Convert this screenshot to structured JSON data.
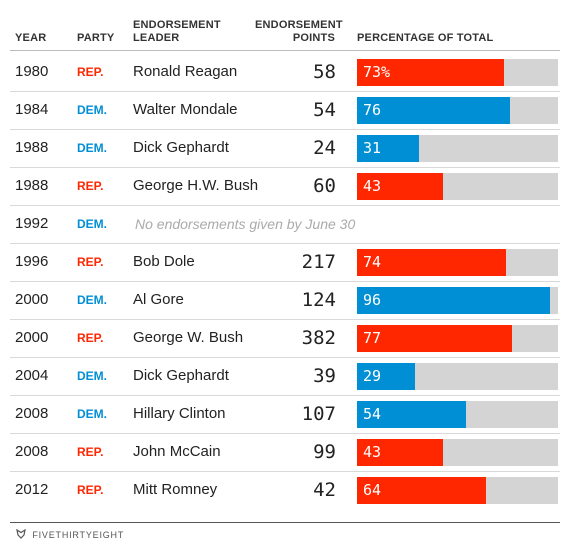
{
  "colors": {
    "rep": "#ff2700",
    "dem": "#008fd5",
    "track": "#d4d4d4",
    "rep_text": "#ff2700",
    "dem_text": "#008fd5"
  },
  "headers": {
    "year": "YEAR",
    "party": "PARTY",
    "leader": [
      "ENDORSEMENT",
      "LEADER"
    ],
    "points": [
      "ENDORSEMENT",
      "POINTS"
    ],
    "percentage": "PERCENTAGE OF TOTAL"
  },
  "chart_data": {
    "type": "table",
    "columns": [
      "YEAR",
      "PARTY",
      "ENDORSEMENT LEADER",
      "ENDORSEMENT POINTS",
      "PERCENTAGE OF TOTAL"
    ],
    "xlim": [
      0,
      100
    ],
    "rows": [
      {
        "year": "1980",
        "party": "REP.",
        "leader": "Ronald Reagan",
        "points": "58",
        "percent": 73,
        "percent_label": "73%"
      },
      {
        "year": "1984",
        "party": "DEM.",
        "leader": "Walter Mondale",
        "points": "54",
        "percent": 76,
        "percent_label": "76"
      },
      {
        "year": "1988",
        "party": "DEM.",
        "leader": "Dick Gephardt",
        "points": "24",
        "percent": 31,
        "percent_label": "31"
      },
      {
        "year": "1988",
        "party": "REP.",
        "leader": "George H.W. Bush",
        "points": "60",
        "percent": 43,
        "percent_label": "43"
      },
      {
        "year": "1992",
        "party": "DEM.",
        "note": "No endorsements given by June 30"
      },
      {
        "year": "1996",
        "party": "REP.",
        "leader": "Bob Dole",
        "points": "217",
        "percent": 74,
        "percent_label": "74"
      },
      {
        "year": "2000",
        "party": "DEM.",
        "leader": "Al Gore",
        "points": "124",
        "percent": 96,
        "percent_label": "96"
      },
      {
        "year": "2000",
        "party": "REP.",
        "leader": "George W. Bush",
        "points": "382",
        "percent": 77,
        "percent_label": "77"
      },
      {
        "year": "2004",
        "party": "DEM.",
        "leader": "Dick Gephardt",
        "points": "39",
        "percent": 29,
        "percent_label": "29"
      },
      {
        "year": "2008",
        "party": "DEM.",
        "leader": "Hillary Clinton",
        "points": "107",
        "percent": 54,
        "percent_label": "54"
      },
      {
        "year": "2008",
        "party": "REP.",
        "leader": "John McCain",
        "points": "99",
        "percent": 43,
        "percent_label": "43"
      },
      {
        "year": "2012",
        "party": "REP.",
        "leader": "Mitt Romney",
        "points": "42",
        "percent": 64,
        "percent_label": "64"
      }
    ]
  },
  "footer": {
    "brand": "FIVETHIRTYEIGHT",
    "logo_icon": "fivethirtyeight-fox-icon"
  }
}
